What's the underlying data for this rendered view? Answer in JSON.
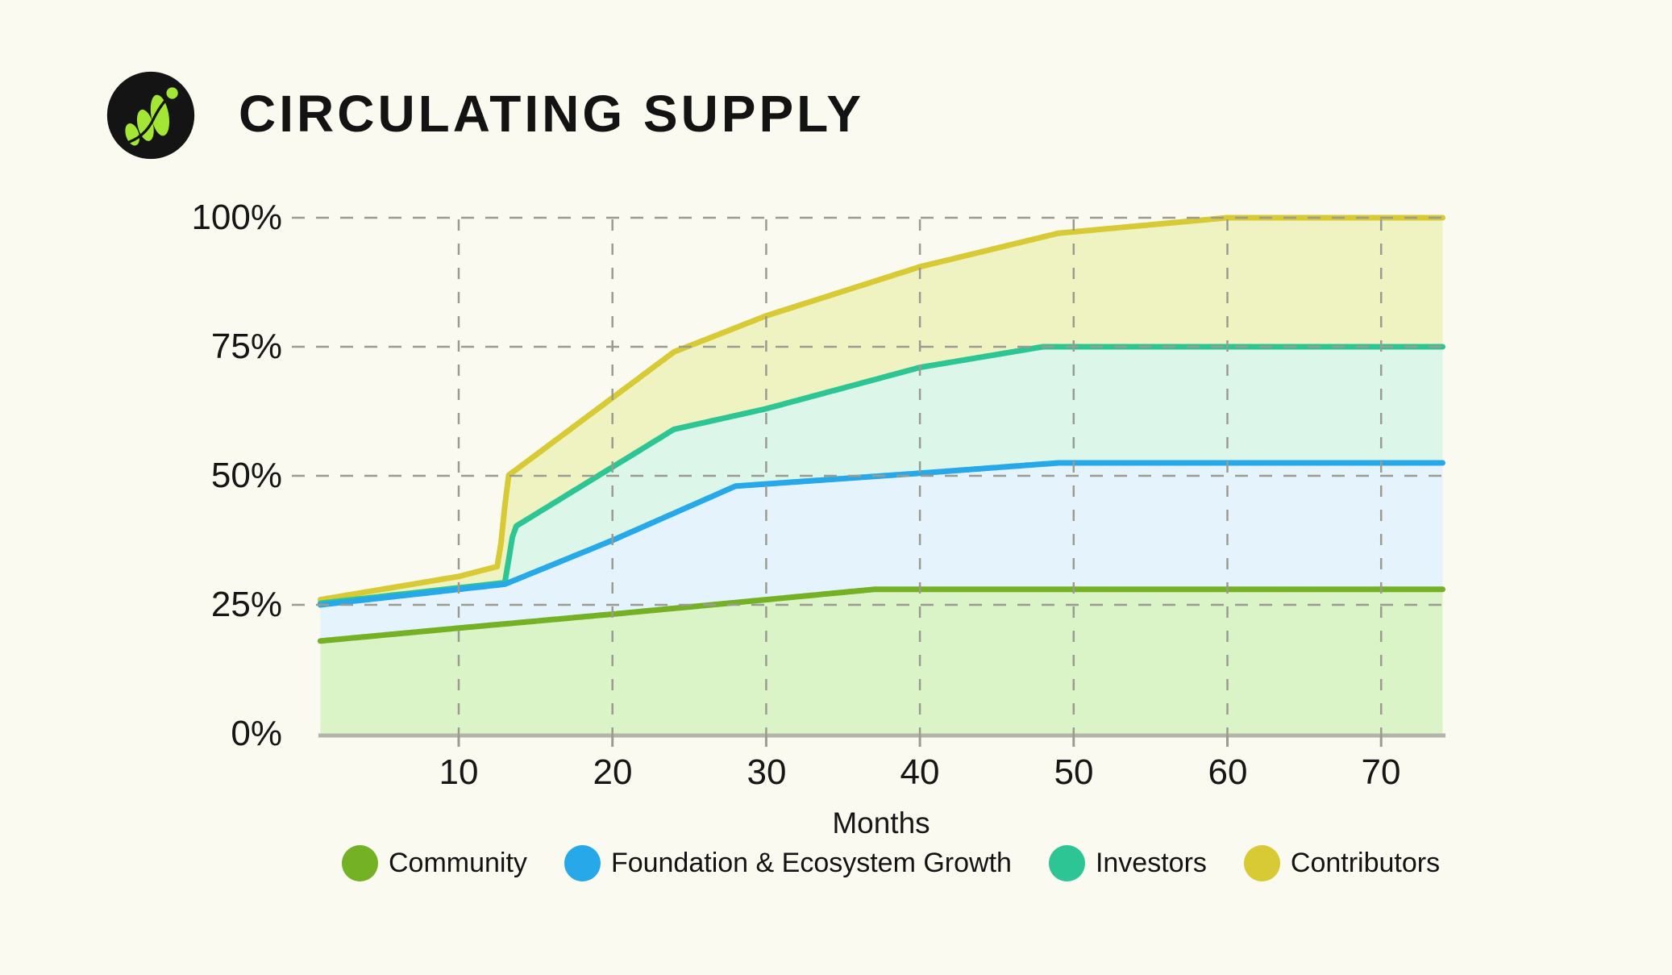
{
  "page": {
    "background": "#fafaf0",
    "text_color": "#161616"
  },
  "header": {
    "title": "CIRCULATING SUPPLY",
    "logo_name": "leaf-growth-logo",
    "logo_colors": {
      "circle": "#141414",
      "leaf": "#a3e635"
    }
  },
  "chart_data": {
    "type": "area",
    "title": "CIRCULATING SUPPLY",
    "xlabel": "Months",
    "x_unit": "months",
    "y_unit": "percent of supply",
    "x_ticks": [
      10,
      20,
      30,
      40,
      50,
      60,
      70
    ],
    "y_tick_labels": [
      "100%",
      "75%",
      "50%",
      "25%",
      "0%"
    ],
    "y_gridlines_percent": [
      25,
      50,
      75,
      100
    ],
    "x_range": [
      1,
      74
    ],
    "y_range": [
      0,
      100
    ],
    "grid": true,
    "grid_color": "#9b9b92",
    "axis_color": "#b4b4ad",
    "legend_position": "bottom",
    "series": [
      {
        "name": "Community",
        "color": "#74b124",
        "fill": "#daf3c7",
        "points": [
          [
            1,
            18
          ],
          [
            10,
            20.5
          ],
          [
            20,
            23.2
          ],
          [
            30,
            26
          ],
          [
            37,
            28
          ],
          [
            74,
            28
          ]
        ]
      },
      {
        "name": "Foundation & Ecosystem Growth",
        "color": "#27a9e9",
        "fill": "#e5f4fc",
        "points": [
          [
            1,
            25
          ],
          [
            10,
            28
          ],
          [
            13,
            29
          ],
          [
            20,
            37.5
          ],
          [
            28,
            48
          ],
          [
            40,
            50.5
          ],
          [
            49,
            52.5
          ],
          [
            74,
            52.5
          ]
        ]
      },
      {
        "name": "Investors",
        "color": "#2ec595",
        "fill": "#dcf7ea",
        "points": [
          [
            1,
            25.3
          ],
          [
            10,
            28.3
          ],
          [
            13,
            29.3
          ],
          [
            13.6,
            40
          ],
          [
            24,
            59
          ],
          [
            30,
            63
          ],
          [
            40,
            71
          ],
          [
            48,
            75
          ],
          [
            74,
            75
          ]
        ]
      },
      {
        "name": "Contributors",
        "color": "#d8ca35",
        "fill": "#eff3c2",
        "points": [
          [
            1,
            26
          ],
          [
            10,
            30.5
          ],
          [
            12.6,
            32.5
          ],
          [
            13.2,
            50
          ],
          [
            24,
            74
          ],
          [
            30,
            81
          ],
          [
            40,
            90.5
          ],
          [
            49,
            97
          ],
          [
            60,
            100
          ],
          [
            74,
            100
          ]
        ]
      }
    ]
  }
}
